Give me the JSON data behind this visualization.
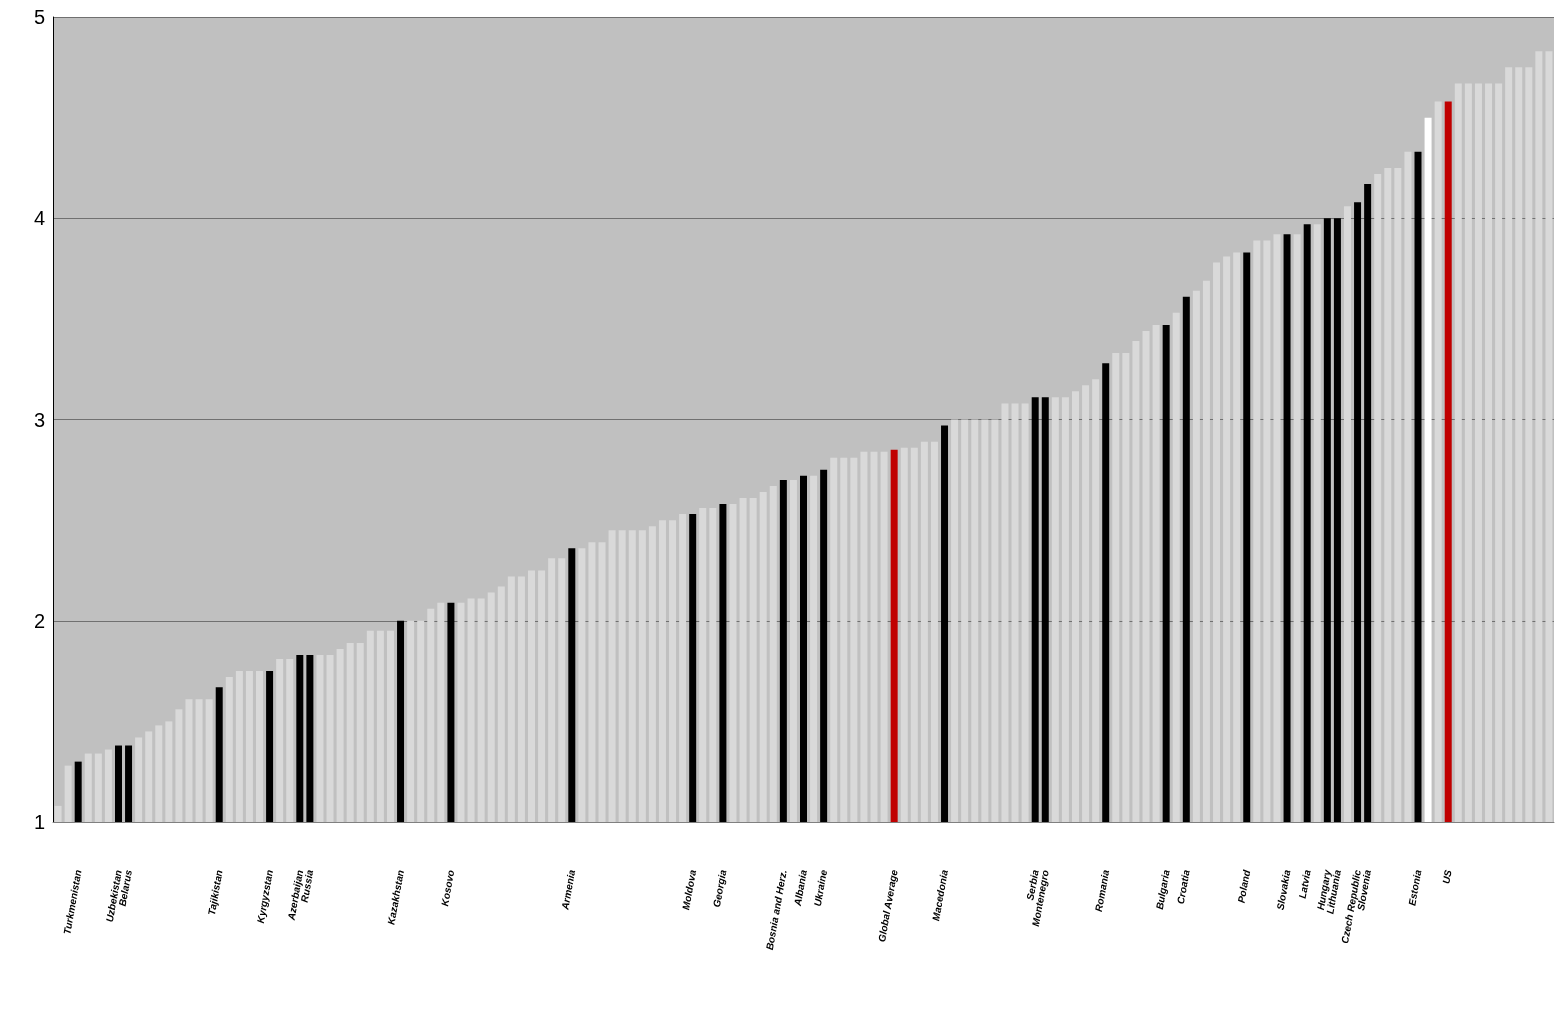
{
  "chart_data": {
    "type": "bar",
    "categories": [
      null,
      null,
      "Turkmenistan",
      null,
      null,
      null,
      "Uzbekistan",
      "Belarus",
      null,
      null,
      null,
      null,
      null,
      null,
      null,
      null,
      "Tajikistan",
      null,
      null,
      null,
      null,
      "Kyrgyzstan",
      null,
      null,
      "Azerbaijan",
      "Russia",
      null,
      null,
      null,
      null,
      null,
      null,
      null,
      null,
      "Kazakhstan",
      null,
      null,
      null,
      null,
      "Kosovo",
      null,
      null,
      null,
      null,
      null,
      null,
      null,
      null,
      null,
      null,
      null,
      "Armenia",
      null,
      null,
      null,
      null,
      null,
      null,
      null,
      null,
      null,
      null,
      null,
      "Moldova",
      null,
      null,
      "Georgia",
      null,
      null,
      null,
      null,
      null,
      "Bosnia and Herz.",
      null,
      "Albania",
      null,
      "Ukraine",
      null,
      null,
      null,
      null,
      null,
      null,
      "Global Average",
      null,
      null,
      null,
      null,
      "Macedonia",
      null,
      null,
      null,
      null,
      null,
      null,
      null,
      null,
      "Serbia",
      "Montenegro",
      null,
      null,
      null,
      null,
      null,
      "Romania",
      null,
      null,
      null,
      null,
      null,
      "Bulgaria",
      null,
      "Croatia",
      null,
      null,
      null,
      null,
      null,
      "Poland",
      null,
      null,
      null,
      "Slovakia",
      null,
      "Latvia",
      null,
      "Hungary",
      "Lithuania",
      null,
      "Czech Republic",
      "Slovenia",
      null,
      null,
      null,
      null,
      "Estonia",
      null,
      null,
      "US",
      null,
      null,
      null,
      null,
      null,
      null,
      null,
      null,
      null,
      null
    ],
    "values": [
      1.08,
      1.28,
      1.3,
      1.34,
      1.34,
      1.36,
      1.38,
      1.38,
      1.42,
      1.45,
      1.48,
      1.5,
      1.56,
      1.61,
      1.61,
      1.61,
      1.67,
      1.72,
      1.75,
      1.75,
      1.75,
      1.75,
      1.81,
      1.81,
      1.83,
      1.83,
      1.83,
      1.83,
      1.86,
      1.89,
      1.89,
      1.95,
      1.95,
      1.95,
      2.0,
      2.0,
      2.0,
      2.06,
      2.09,
      2.09,
      2.09,
      2.11,
      2.11,
      2.14,
      2.17,
      2.22,
      2.22,
      2.25,
      2.25,
      2.31,
      2.31,
      2.36,
      2.36,
      2.39,
      2.39,
      2.45,
      2.45,
      2.45,
      2.45,
      2.47,
      2.5,
      2.5,
      2.53,
      2.53,
      2.56,
      2.56,
      2.58,
      2.58,
      2.61,
      2.61,
      2.64,
      2.67,
      2.7,
      2.7,
      2.72,
      2.72,
      2.75,
      2.81,
      2.81,
      2.81,
      2.84,
      2.84,
      2.84,
      2.85,
      2.86,
      2.86,
      2.89,
      2.89,
      2.97,
      3.0,
      3.0,
      3.0,
      3.0,
      3.0,
      3.08,
      3.08,
      3.08,
      3.11,
      3.11,
      3.11,
      3.11,
      3.14,
      3.17,
      3.2,
      3.28,
      3.33,
      3.33,
      3.39,
      3.44,
      3.47,
      3.47,
      3.53,
      3.61,
      3.64,
      3.69,
      3.78,
      3.81,
      3.83,
      3.83,
      3.89,
      3.89,
      3.92,
      3.92,
      3.92,
      3.97,
      3.97,
      4.0,
      4.0,
      4.06,
      4.08,
      4.17,
      4.22,
      4.25,
      4.25,
      4.33,
      4.33,
      4.5,
      4.58,
      4.58,
      4.67,
      4.67,
      4.67,
      4.67,
      4.67,
      4.75,
      4.75,
      4.75,
      4.83,
      4.83
    ],
    "colors": [
      "#d9d9d9",
      "#d9d9d9",
      "#000000",
      "#d9d9d9",
      "#d9d9d9",
      "#d9d9d9",
      "#000000",
      "#000000",
      "#d9d9d9",
      "#d9d9d9",
      "#d9d9d9",
      "#d9d9d9",
      "#d9d9d9",
      "#d9d9d9",
      "#d9d9d9",
      "#d9d9d9",
      "#000000",
      "#d9d9d9",
      "#d9d9d9",
      "#d9d9d9",
      "#d9d9d9",
      "#000000",
      "#d9d9d9",
      "#d9d9d9",
      "#000000",
      "#000000",
      "#d9d9d9",
      "#d9d9d9",
      "#d9d9d9",
      "#d9d9d9",
      "#d9d9d9",
      "#d9d9d9",
      "#d9d9d9",
      "#d9d9d9",
      "#000000",
      "#d9d9d9",
      "#d9d9d9",
      "#d9d9d9",
      "#d9d9d9",
      "#000000",
      "#d9d9d9",
      "#d9d9d9",
      "#d9d9d9",
      "#d9d9d9",
      "#d9d9d9",
      "#d9d9d9",
      "#d9d9d9",
      "#d9d9d9",
      "#d9d9d9",
      "#d9d9d9",
      "#d9d9d9",
      "#000000",
      "#d9d9d9",
      "#d9d9d9",
      "#d9d9d9",
      "#d9d9d9",
      "#d9d9d9",
      "#d9d9d9",
      "#d9d9d9",
      "#d9d9d9",
      "#d9d9d9",
      "#d9d9d9",
      "#d9d9d9",
      "#000000",
      "#d9d9d9",
      "#d9d9d9",
      "#000000",
      "#d9d9d9",
      "#d9d9d9",
      "#d9d9d9",
      "#d9d9d9",
      "#d9d9d9",
      "#000000",
      "#d9d9d9",
      "#000000",
      "#d9d9d9",
      "#000000",
      "#d9d9d9",
      "#d9d9d9",
      "#d9d9d9",
      "#d9d9d9",
      "#d9d9d9",
      "#d9d9d9",
      "#c00000",
      "#d9d9d9",
      "#d9d9d9",
      "#d9d9d9",
      "#d9d9d9",
      "#000000",
      "#d9d9d9",
      "#d9d9d9",
      "#d9d9d9",
      "#d9d9d9",
      "#d9d9d9",
      "#d9d9d9",
      "#d9d9d9",
      "#d9d9d9",
      "#000000",
      "#000000",
      "#d9d9d9",
      "#d9d9d9",
      "#d9d9d9",
      "#d9d9d9",
      "#d9d9d9",
      "#000000",
      "#d9d9d9",
      "#d9d9d9",
      "#d9d9d9",
      "#d9d9d9",
      "#d9d9d9",
      "#000000",
      "#d9d9d9",
      "#000000",
      "#d9d9d9",
      "#d9d9d9",
      "#d9d9d9",
      "#d9d9d9",
      "#d9d9d9",
      "#000000",
      "#d9d9d9",
      "#d9d9d9",
      "#d9d9d9",
      "#000000",
      "#d9d9d9",
      "#000000",
      "#d9d9d9",
      "#000000",
      "#000000",
      "#d9d9d9",
      "#000000",
      "#000000",
      "#d9d9d9",
      "#d9d9d9",
      "#d9d9d9",
      "#d9d9d9",
      "#000000",
      "#ffffff",
      "#d9d9d9",
      "#c00000",
      "#d9d9d9",
      "#d9d9d9",
      "#d9d9d9",
      "#d9d9d9",
      "#d9d9d9",
      "#d9d9d9",
      "#d9d9d9",
      "#d9d9d9",
      "#d9d9d9",
      "#d9d9d9"
    ],
    "ylim": [
      1,
      5
    ],
    "yticks": [
      1,
      2,
      3,
      4,
      5
    ],
    "grid": "y"
  }
}
